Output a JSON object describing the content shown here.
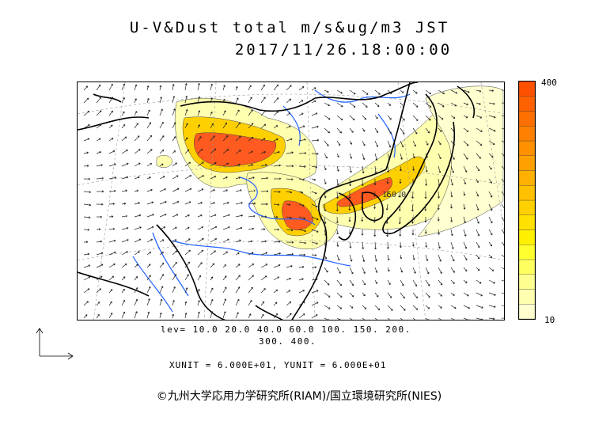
{
  "title": {
    "line1": "U-V&Dust total m/s&ug/m3 JST",
    "line2": "2017/11/26.18:00:00"
  },
  "colorbar": {
    "max_label": "400",
    "min_label": "10",
    "colors": [
      "#ffffd0",
      "#ffffb0",
      "#ffff90",
      "#ffff60",
      "#ffff30",
      "#fff000",
      "#ffe000",
      "#ffd000",
      "#ffc000",
      "#ffb000",
      "#ffa000",
      "#ff9000",
      "#ff8000",
      "#ff7000",
      "#ff6000",
      "#ff5000"
    ]
  },
  "legend": {
    "levels_line1": "lev= 10.0 20.0 40.0 60.0 100. 150. 200.",
    "levels_line2": "300. 400.",
    "units": "XUNIT = 6.000E+01, YUNIT = 6.000E+01"
  },
  "map_labels": {
    "contour_label": "150.0"
  },
  "colors": {
    "low": "#ffffb0",
    "mid": "#ffd000",
    "high": "#ff5000",
    "rivers": "#2060ff",
    "coast": "#000000"
  },
  "copyright": "©九州大学応用力学研究所(RIAM)/国立環境研究所(NIES)"
}
